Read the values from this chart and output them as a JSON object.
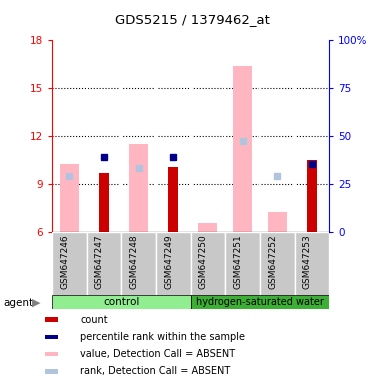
{
  "title": "GDS5215 / 1379462_at",
  "samples": [
    "GSM647246",
    "GSM647247",
    "GSM647248",
    "GSM647249",
    "GSM647250",
    "GSM647251",
    "GSM647252",
    "GSM647253"
  ],
  "ylim_left": [
    6,
    18
  ],
  "ylim_right": [
    0,
    100
  ],
  "yticks_left": [
    6,
    9,
    12,
    15,
    18
  ],
  "yticks_right": [
    0,
    25,
    50,
    75,
    100
  ],
  "ytick_labels_right": [
    "0",
    "25",
    "50",
    "75",
    "100%"
  ],
  "value_absent": [
    10.3,
    null,
    11.5,
    null,
    6.6,
    16.4,
    7.3,
    null
  ],
  "rank_absent": [
    9.5,
    null,
    10.0,
    null,
    null,
    11.7,
    9.5,
    null
  ],
  "count_present": [
    null,
    9.7,
    null,
    10.1,
    null,
    null,
    null,
    10.5
  ],
  "rank_present": [
    null,
    10.7,
    null,
    10.7,
    null,
    null,
    null,
    10.3
  ],
  "absent_value_color": "#FFB6C1",
  "absent_rank_color": "#B0C4DE",
  "present_count_color": "#CC0000",
  "present_rank_color": "#00008B",
  "grid_lines": [
    9,
    12,
    15
  ],
  "control_color": "#90EE90",
  "h2_color": "#3CB034",
  "gray_bg": "#C8C8C8"
}
